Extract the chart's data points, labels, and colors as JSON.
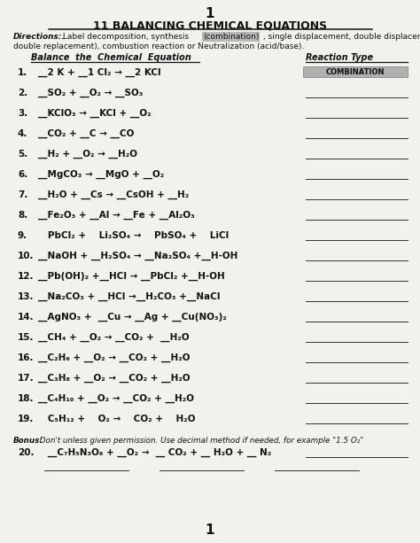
{
  "page_number": "1",
  "title": "11 BALANCING CHEMICAL EQUATIONS",
  "col_header_left": "Balance  the  Chemical  Equation",
  "col_header_right": "Reaction Type",
  "problems": [
    {
      "num": "1.",
      "eq": "__2 K + __1 Cl₂ → __2 KCl",
      "answer": "COMBINATION"
    },
    {
      "num": "2.",
      "eq": "__SO₂ + __O₂ → __SO₃",
      "answer": ""
    },
    {
      "num": "3.",
      "eq": "__KClO₃ → __KCl + __O₂",
      "answer": ""
    },
    {
      "num": "4.",
      "eq": "__CO₂ + __C → __CO",
      "answer": ""
    },
    {
      "num": "5.",
      "eq": "__H₂ + __O₂ → __H₂O",
      "answer": ""
    },
    {
      "num": "6.",
      "eq": "__MgCO₃ → __MgO + __O₂",
      "answer": ""
    },
    {
      "num": "7.",
      "eq": "__H₂O + __Cs → __CsOH + __H₂",
      "answer": ""
    },
    {
      "num": "8.",
      "eq": "__Fe₂O₃ + __Al → __Fe + __Al₂O₃",
      "answer": ""
    },
    {
      "num": "9.",
      "eq": "   PbCl₂ +    Li₂SO₄ →    PbSO₄ +    LiCl",
      "answer": ""
    },
    {
      "num": "10.",
      "eq": "__NaOH + __H₂SO₄ → __Na₂SO₄ +__H-OH",
      "answer": ""
    },
    {
      "num": "12.",
      "eq": "__Pb(OH)₂ +__HCl → __PbCl₂ +__H-OH",
      "answer": ""
    },
    {
      "num": "13.",
      "eq": "__Na₂CO₃ + __HCl →__H₂CO₃ +__NaCl",
      "answer": ""
    },
    {
      "num": "14.",
      "eq": "__AgNO₃ +  __Cu → __Ag + __Cu(NO₃)₂",
      "answer": ""
    },
    {
      "num": "15.",
      "eq": "__CH₄ + __O₂ → __CO₂ +  __H₂O",
      "answer": ""
    },
    {
      "num": "16.",
      "eq": "__C₂H₆ + __O₂ → __CO₂ + __H₂O",
      "answer": ""
    },
    {
      "num": "17.",
      "eq": "__C₃H₈ + __O₂ → __CO₂ + __H₂O",
      "answer": ""
    },
    {
      "num": "18.",
      "eq": "__C₄H₁₀ + __O₂ → __CO₂ + __H₂O",
      "answer": ""
    },
    {
      "num": "19.",
      "eq": "   C₅H₁₂ +    O₂ →    CO₂ +    H₂O",
      "answer": ""
    }
  ],
  "bonus_label": "Bonus:",
  "bonus_rest": " Don't unless given permission. Use decimal method if needed, for example \"1.5 O₂\"",
  "bonus_eq_num": "20.",
  "bonus_eq": "   __C₇H₅N₃O₆ + __O₂ →  __ CO₂ + __ H₂O + __ N₂",
  "footer": "1",
  "bg_color": "#f2f2ed",
  "text_color": "#111111",
  "combo_bg": "#b0b0b0",
  "line_color": "#333333"
}
